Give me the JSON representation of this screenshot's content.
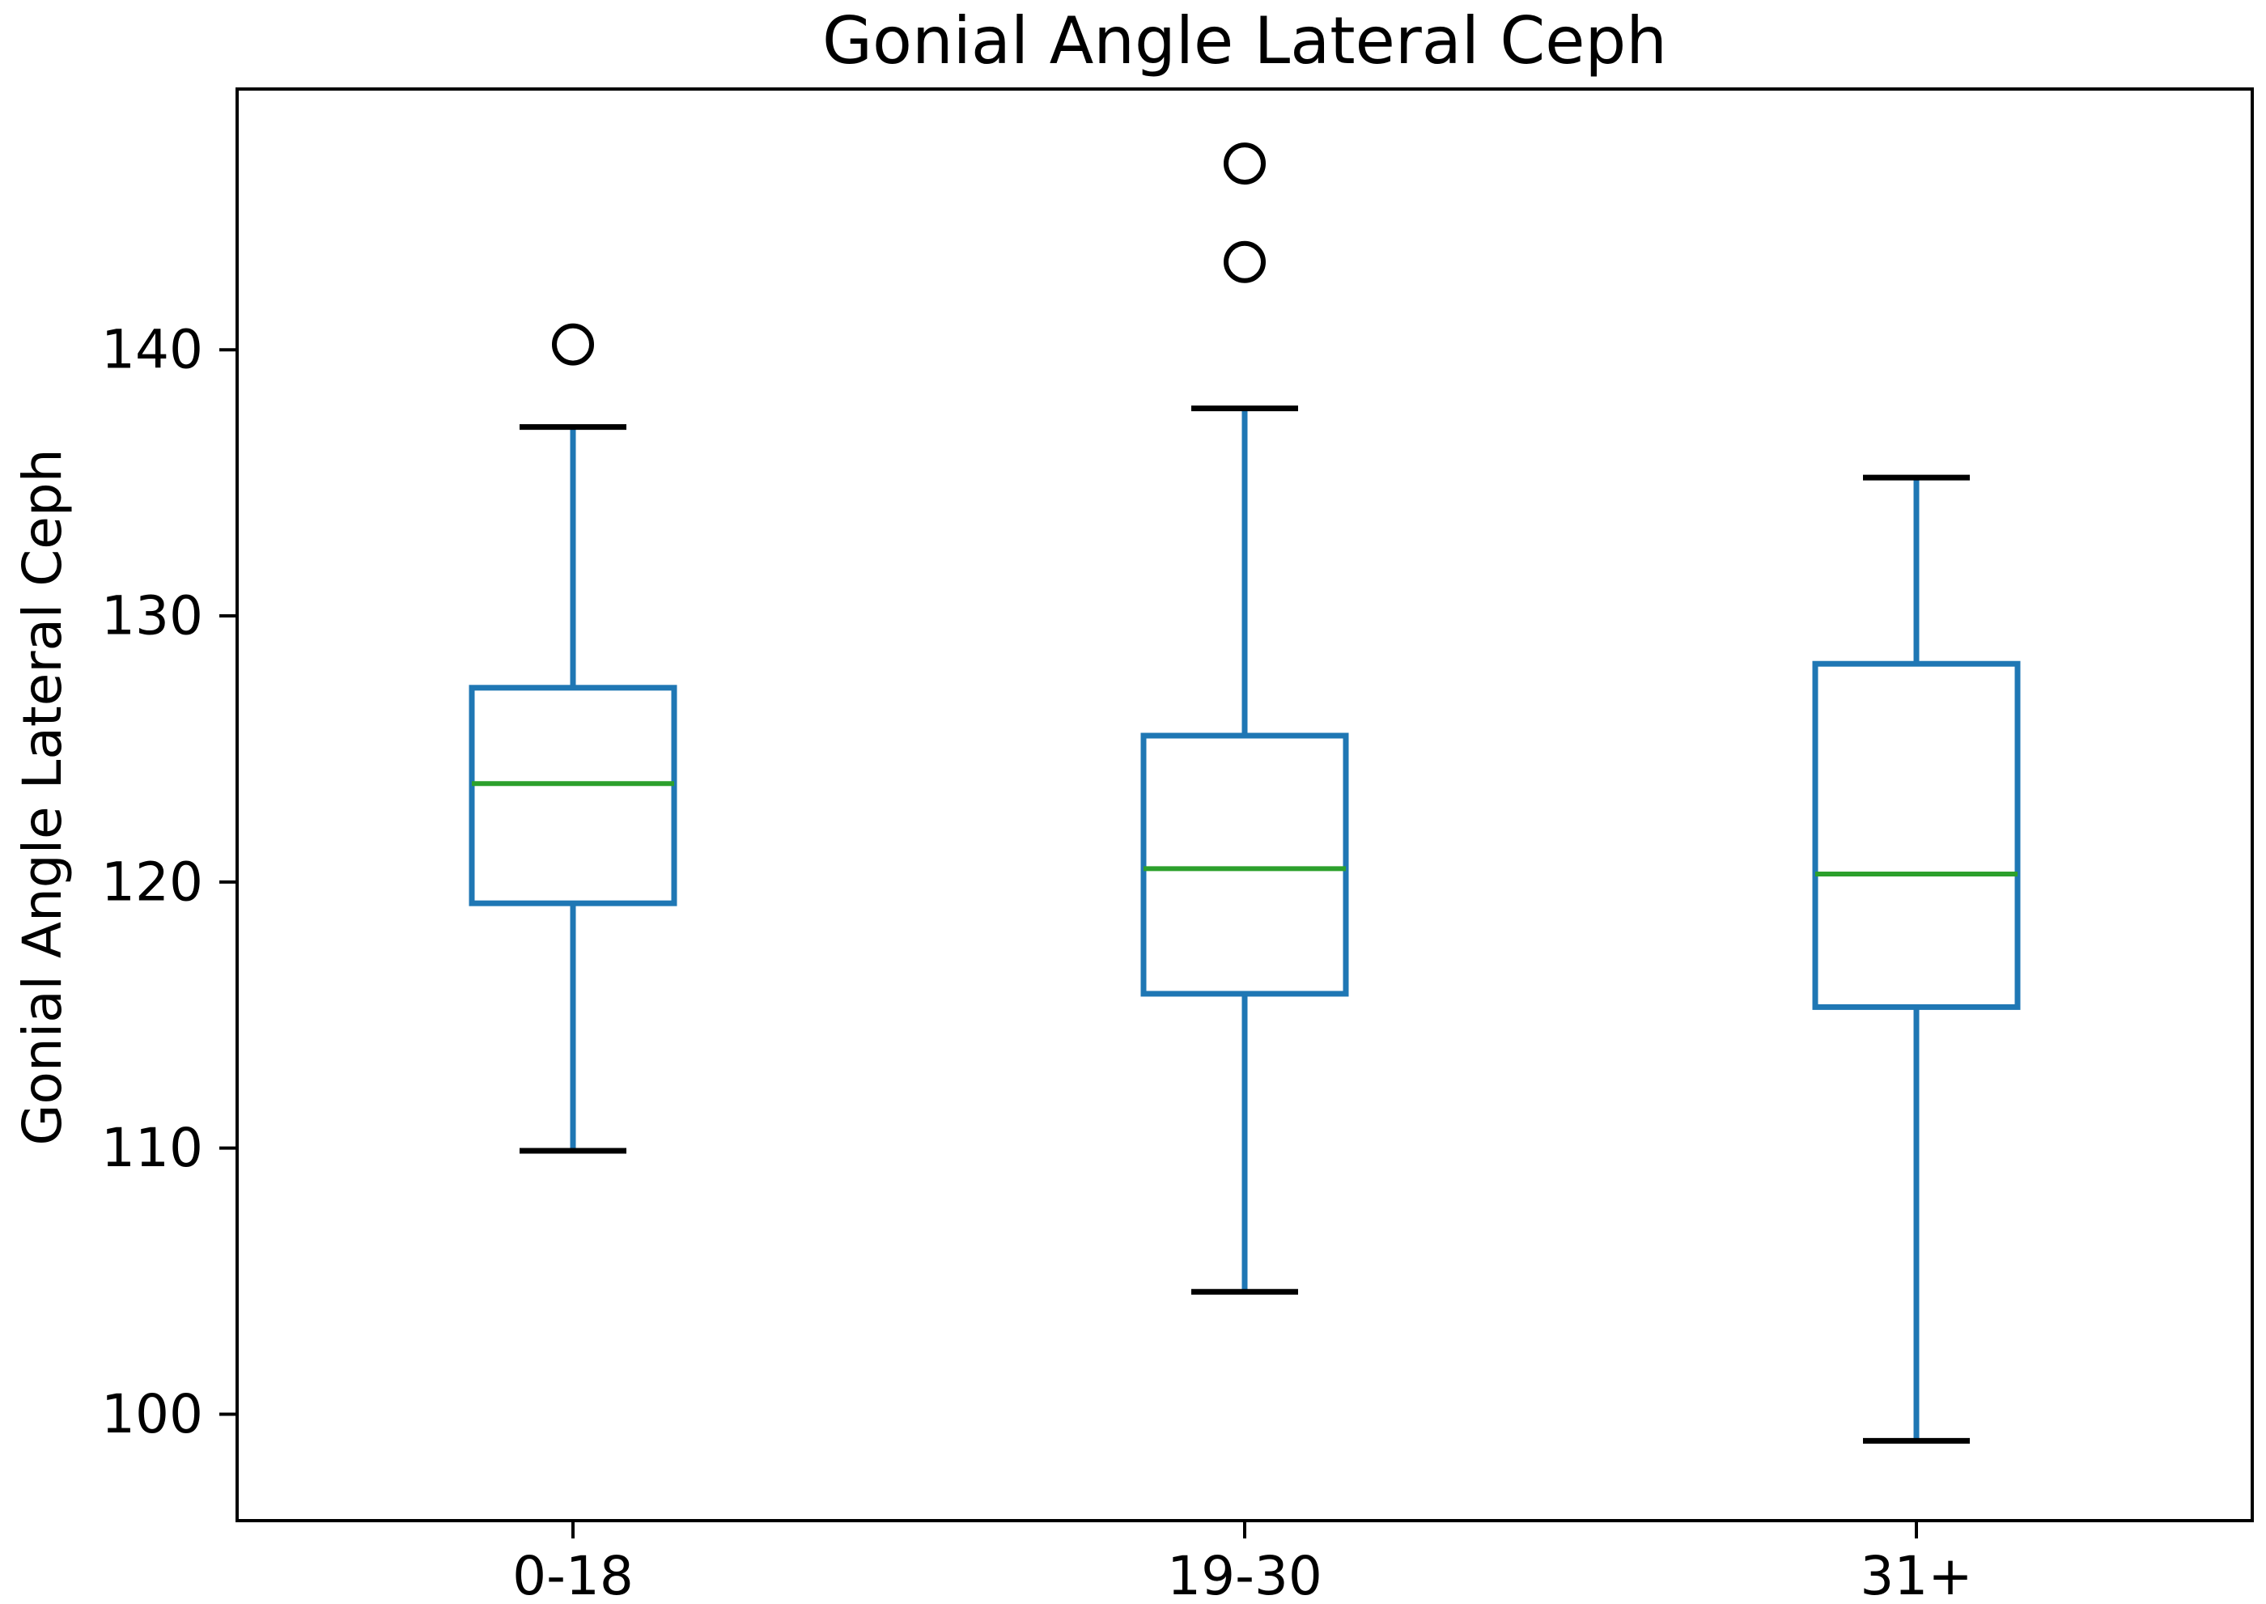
{
  "figure": {
    "title": "Gonial Angle Lateral Ceph"
  },
  "chart_data": {
    "type": "boxplot",
    "title": "Gonial Angle Lateral Ceph",
    "xlabel": "",
    "ylabel": "Gonial Angle Lateral Ceph",
    "categories": [
      "0-18",
      "19-30",
      "31+"
    ],
    "positions": [
      1,
      2,
      3
    ],
    "xlim": [
      0.5,
      3.5
    ],
    "ylim": [
      96.0,
      149.8
    ],
    "yticks": [
      100,
      110,
      120,
      130,
      140
    ],
    "grid": false,
    "legend_position": "none",
    "groups": [
      {
        "label": "0-18",
        "whisker_low": 109.9,
        "q1": 119.2,
        "median": 123.7,
        "q3": 127.3,
        "whisker_high": 137.1,
        "outliers": [
          140.2
        ]
      },
      {
        "label": "19-30",
        "whisker_low": 104.6,
        "q1": 115.8,
        "median": 120.5,
        "q3": 125.5,
        "whisker_high": 137.8,
        "outliers": [
          143.3,
          147.0
        ]
      },
      {
        "label": "31+",
        "whisker_low": 99.0,
        "q1": 115.3,
        "median": 120.3,
        "q3": 128.2,
        "whisker_high": 135.2,
        "outliers": []
      }
    ],
    "colors": {
      "box": "#1f77b4",
      "whisker": "#1f77b4",
      "cap": "#000000",
      "median": "#2ca02c",
      "outlier": "#000000",
      "axis": "#000000",
      "text": "#000000",
      "background": "#ffffff"
    }
  }
}
